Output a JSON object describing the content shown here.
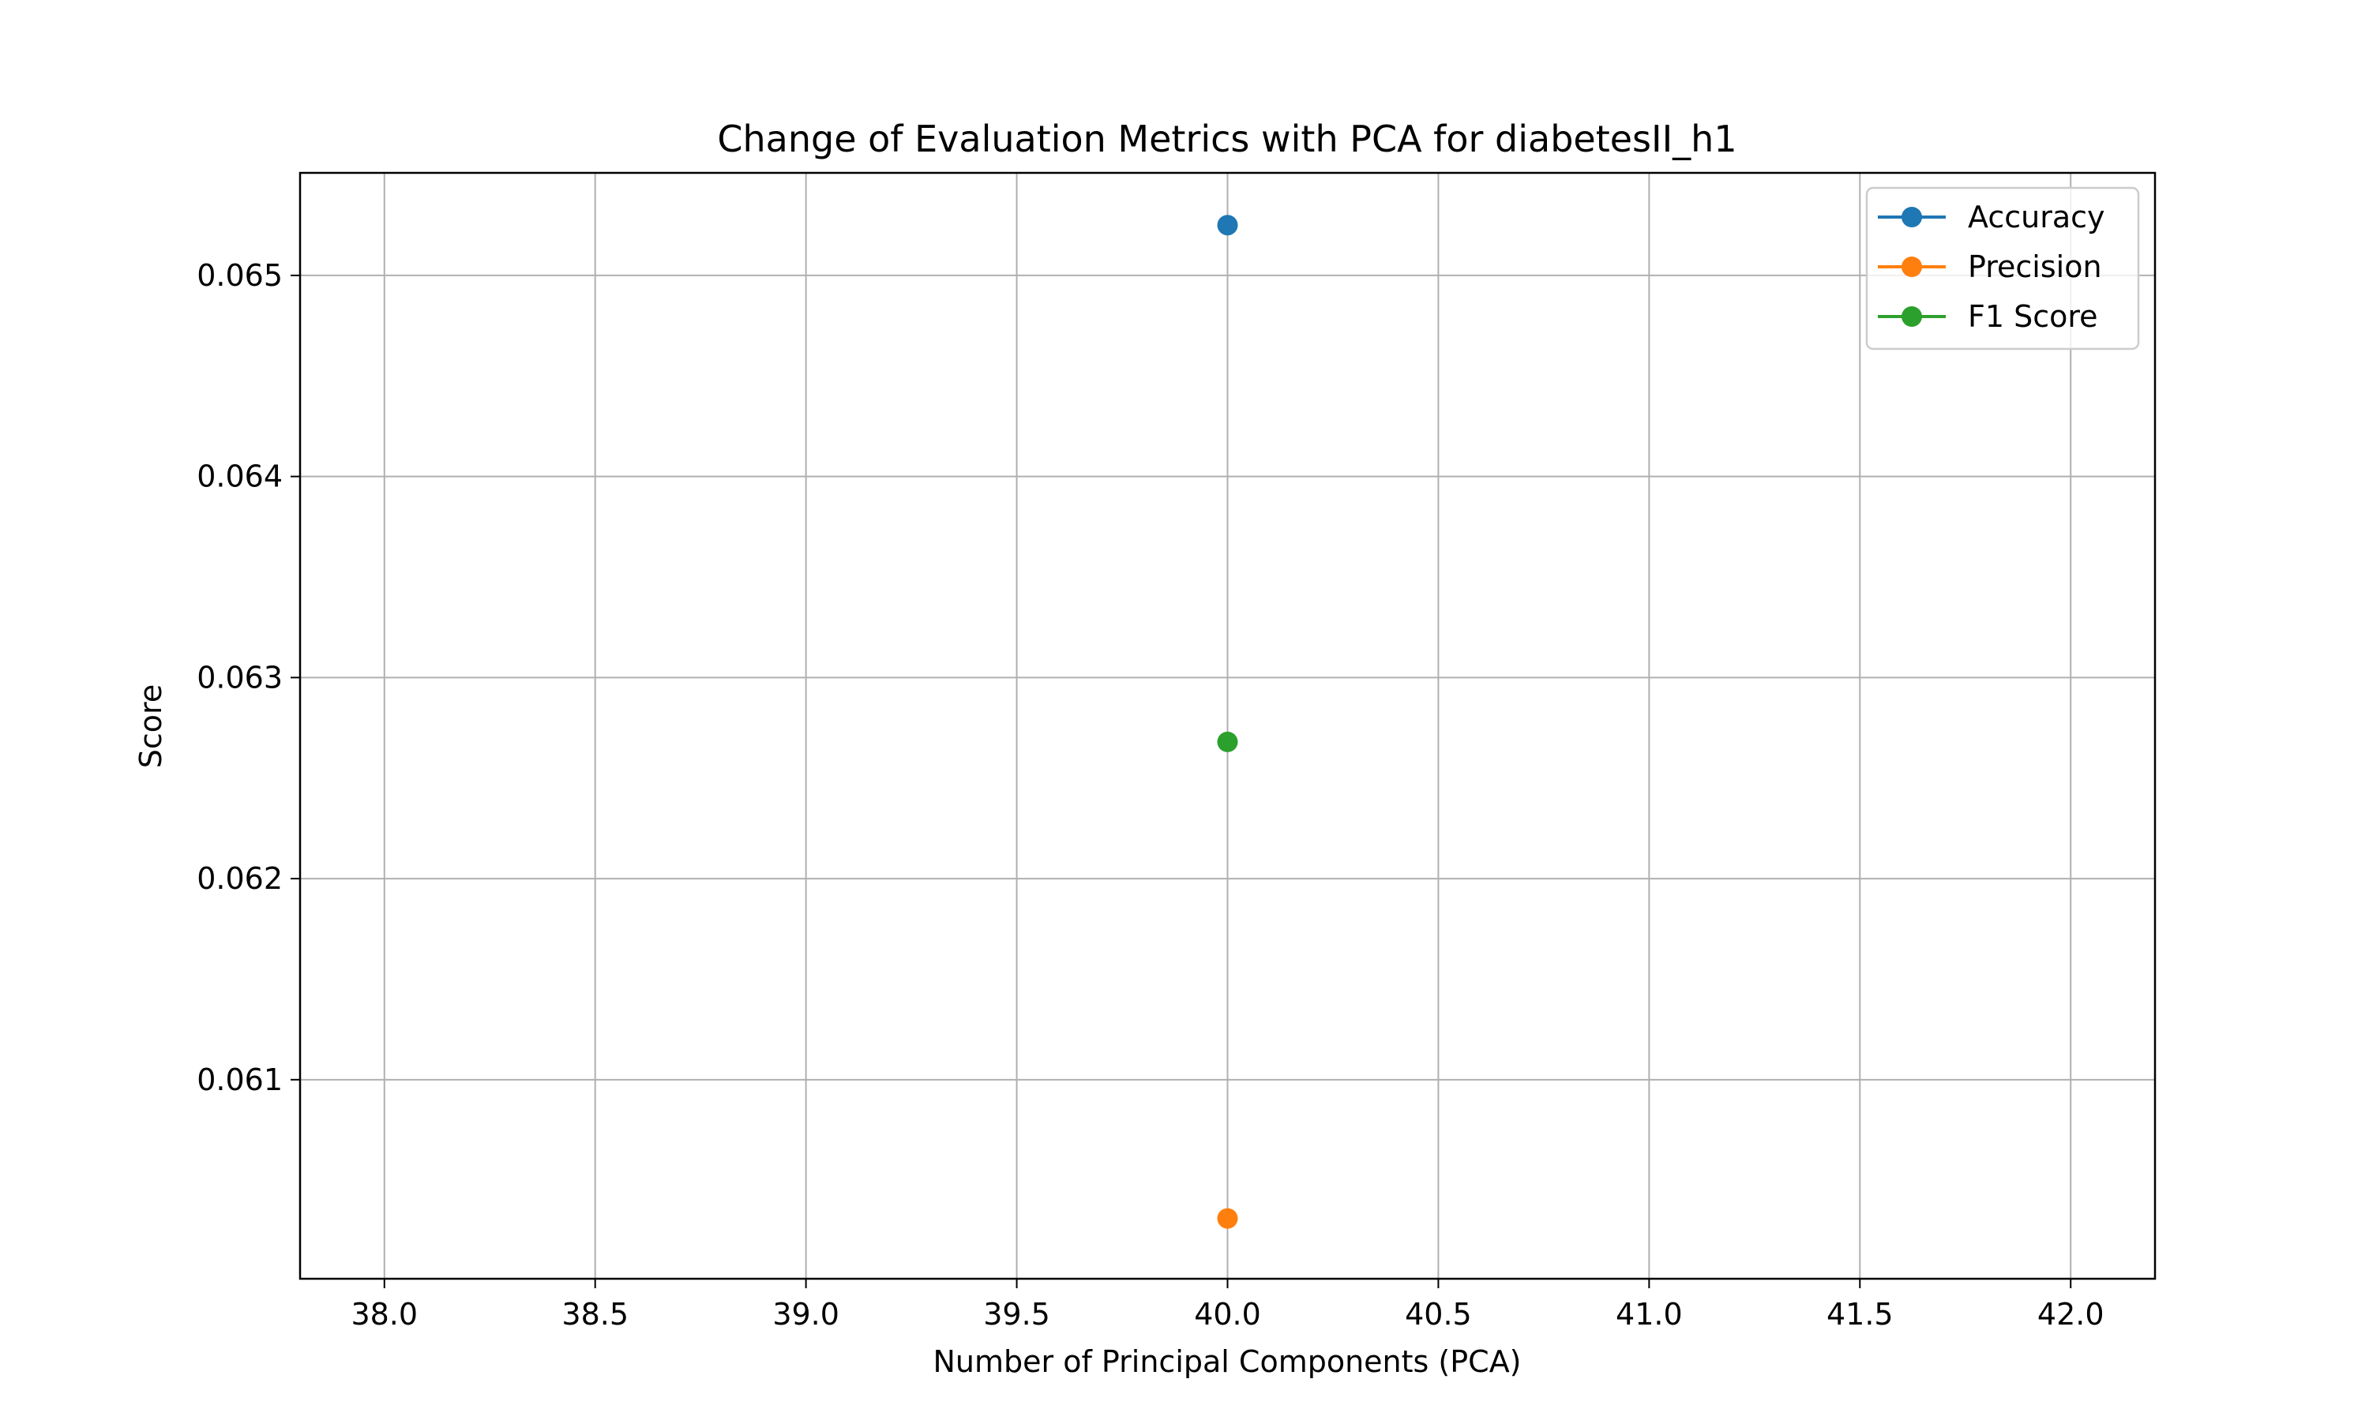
{
  "chart_data": {
    "type": "line",
    "title": "Change of Evaluation Metrics with PCA for diabetesII_h1",
    "xlabel": "Number of Principal Components (PCA)",
    "ylabel": "Score",
    "xlim": [
      37.8,
      42.2
    ],
    "ylim": [
      0.06001,
      0.06551
    ],
    "x_ticks": [
      38.0,
      38.5,
      39.0,
      39.5,
      40.0,
      40.5,
      41.0,
      41.5,
      42.0
    ],
    "x_tick_labels": [
      "38.0",
      "38.5",
      "39.0",
      "39.5",
      "40.0",
      "40.5",
      "41.0",
      "41.5",
      "42.0"
    ],
    "y_ticks": [
      0.061,
      0.062,
      0.063,
      0.064,
      0.065
    ],
    "y_tick_labels": [
      "0.061",
      "0.062",
      "0.063",
      "0.064",
      "0.065"
    ],
    "grid": true,
    "legend_position": "top-right",
    "x": [
      40
    ],
    "series": [
      {
        "name": "Accuracy",
        "color": "#1f77b4",
        "values": [
          0.06525
        ]
      },
      {
        "name": "Precision",
        "color": "#ff7f0e",
        "values": [
          0.06031
        ]
      },
      {
        "name": "F1 Score",
        "color": "#2ca02c",
        "values": [
          0.06268
        ]
      }
    ]
  }
}
